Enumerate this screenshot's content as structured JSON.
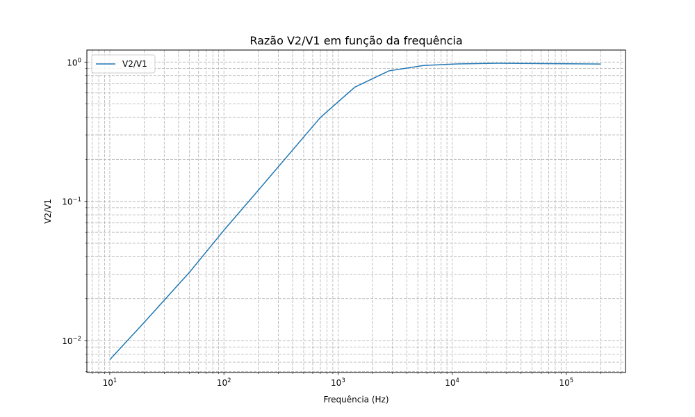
{
  "chart_data": {
    "type": "line",
    "title": "Razão V2/V1 em função da frequência",
    "xlabel": "Frequência (Hz)",
    "ylabel": "V2/V1",
    "xscale": "log",
    "yscale": "log",
    "xlim": [
      6.3,
      330000
    ],
    "ylim": [
      0.0059,
      1.22
    ],
    "x_ticks": [
      {
        "value": 10,
        "base": "10",
        "exp": "1"
      },
      {
        "value": 100,
        "base": "10",
        "exp": "2"
      },
      {
        "value": 1000,
        "base": "10",
        "exp": "3"
      },
      {
        "value": 10000,
        "base": "10",
        "exp": "4"
      },
      {
        "value": 100000,
        "base": "10",
        "exp": "5"
      }
    ],
    "y_ticks": [
      {
        "value": 0.01,
        "base": "10",
        "exp": "−2"
      },
      {
        "value": 0.1,
        "base": "10",
        "exp": "−1"
      },
      {
        "value": 1,
        "base": "10",
        "exp": "0"
      }
    ],
    "grid": true,
    "grid_style": "dashed",
    "legend_position": "top-left",
    "series": [
      {
        "name": "V2/V1",
        "color": "#1f77b4",
        "x": [
          10,
          20,
          50,
          100,
          200,
          700,
          1400,
          2800,
          5600,
          11000,
          25000,
          50000,
          100000,
          200000
        ],
        "y": [
          0.0073,
          0.0135,
          0.031,
          0.062,
          0.12,
          0.4,
          0.66,
          0.865,
          0.945,
          0.97,
          0.98,
          0.977,
          0.972,
          0.968
        ]
      }
    ]
  }
}
